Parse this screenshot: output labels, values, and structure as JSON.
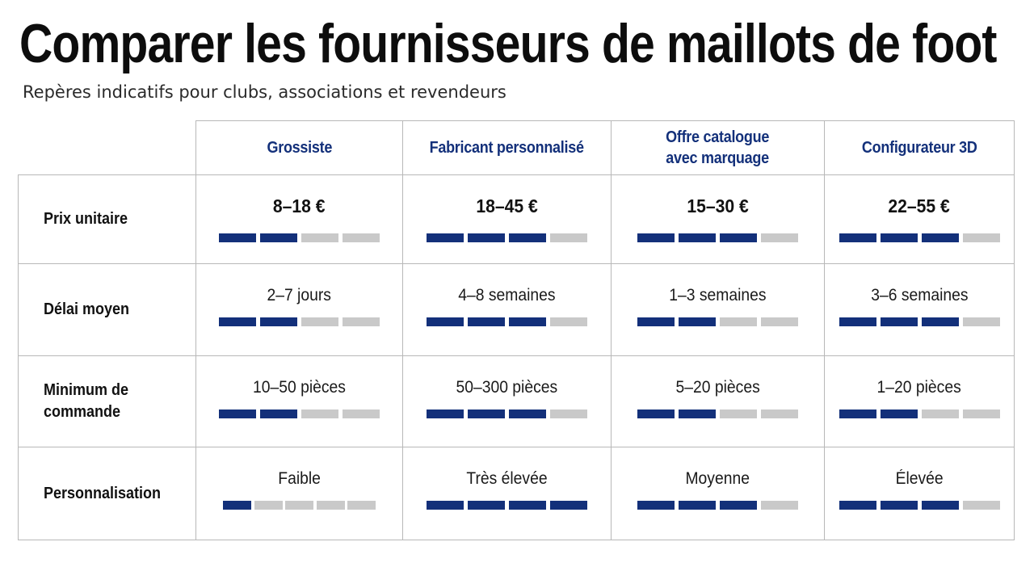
{
  "title": "Comparer les fournisseurs de maillots de foot",
  "subtitle": "Repères indicatifs pour clubs, associations et revendeurs",
  "colors": {
    "accent": "#13307a",
    "bar_empty": "#c9c9c9",
    "grid": "#b8b8b8"
  },
  "columns": [
    "Grossiste",
    "Fabricant personnalisé",
    "Offre catalogue\navec marquage",
    "Configurateur 3D"
  ],
  "rows": [
    {
      "label": "Prix unitaire",
      "cells": [
        {
          "value": "8–18 €",
          "filled": 2,
          "segments": 4
        },
        {
          "value": "18–45 €",
          "filled": 3,
          "segments": 4
        },
        {
          "value": "15–30 €",
          "filled": 3,
          "segments": 4
        },
        {
          "value": "22–55 €",
          "filled": 3,
          "segments": 4
        }
      ]
    },
    {
      "label": "Délai moyen",
      "cells": [
        {
          "value": "2–7 jours",
          "filled": 2,
          "segments": 4
        },
        {
          "value": "4–8 semaines",
          "filled": 3,
          "segments": 4
        },
        {
          "value": "1–3 semaines",
          "filled": 2,
          "segments": 4
        },
        {
          "value": "3–6 semaines",
          "filled": 3,
          "segments": 4
        }
      ]
    },
    {
      "label": "Minimum de\ncommande",
      "cells": [
        {
          "value": "10–50 pièces",
          "filled": 2,
          "segments": 4
        },
        {
          "value": "50–300 pièces",
          "filled": 3,
          "segments": 4
        },
        {
          "value": "5–20 pièces",
          "filled": 2,
          "segments": 4
        },
        {
          "value": "1–20 pièces",
          "filled": 2,
          "segments": 4
        }
      ]
    },
    {
      "label": "Personnalisation",
      "cells": [
        {
          "value": "Faible",
          "filled": 1,
          "segments": 5
        },
        {
          "value": "Très élevée",
          "filled": 4,
          "segments": 4
        },
        {
          "value": "Moyenne",
          "filled": 3,
          "segments": 4
        },
        {
          "value": "Élevée",
          "filled": 3,
          "segments": 4
        }
      ]
    }
  ]
}
